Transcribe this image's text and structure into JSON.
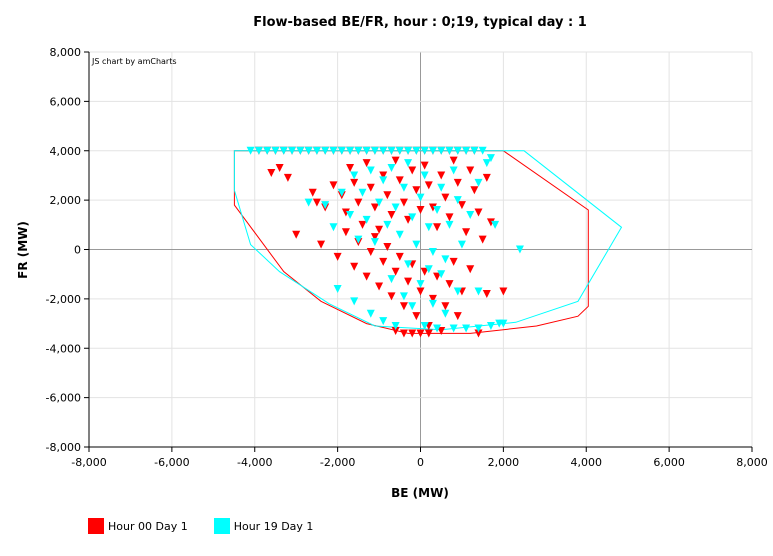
{
  "chart_data": {
    "type": "scatter",
    "title": "Flow-based BE/FR, hour : 0;19, typical day : 1",
    "xlabel": "BE (MW)",
    "ylabel": "FR (MW)",
    "credit": "JS chart by amCharts",
    "xlim": [
      -8000,
      8000
    ],
    "ylim": [
      -8000,
      8000
    ],
    "x_ticks": [
      "-8,000",
      "-6,000",
      "-4,000",
      "-2,000",
      "0",
      "2,000",
      "4,000",
      "6,000",
      "8,000"
    ],
    "y_ticks": [
      "8,000",
      "6,000",
      "4,000",
      "2,000",
      "0",
      "-2,000",
      "-4,000",
      "-6,000",
      "-8,000"
    ],
    "grid": true,
    "legend_position": "bottom-left",
    "series": [
      {
        "name": "Hour 00 Day 1",
        "color": "#ff0000",
        "domain_polygon": [
          [
            -4490,
            4000
          ],
          [
            2000,
            4000
          ],
          [
            4050,
            1600
          ],
          [
            4050,
            -2300
          ],
          [
            3800,
            -2700
          ],
          [
            2800,
            -3100
          ],
          [
            1200,
            -3400
          ],
          [
            -300,
            -3400
          ],
          [
            -1300,
            -3000
          ],
          [
            -2400,
            -2100
          ],
          [
            -3300,
            -900
          ],
          [
            -4490,
            1800
          ]
        ],
        "points": [
          [
            -3900,
            4000
          ],
          [
            -3700,
            4000
          ],
          [
            -3500,
            4000
          ],
          [
            -3300,
            4000
          ],
          [
            -3100,
            4000
          ],
          [
            -2900,
            4000
          ],
          [
            -2700,
            4000
          ],
          [
            -2500,
            4000
          ],
          [
            -2300,
            4000
          ],
          [
            -2100,
            4000
          ],
          [
            -1900,
            4000
          ],
          [
            -1700,
            4000
          ],
          [
            -1500,
            4000
          ],
          [
            -1300,
            4000
          ],
          [
            -1100,
            4000
          ],
          [
            -900,
            4000
          ],
          [
            -700,
            4000
          ],
          [
            -500,
            4000
          ],
          [
            -300,
            4000
          ],
          [
            -100,
            4000
          ],
          [
            100,
            4000
          ],
          [
            300,
            4000
          ],
          [
            500,
            4000
          ],
          [
            700,
            4000
          ],
          [
            900,
            4000
          ],
          [
            1100,
            4000
          ],
          [
            1300,
            4000
          ],
          [
            -3600,
            3100
          ],
          [
            -3400,
            3300
          ],
          [
            -3200,
            2900
          ],
          [
            -2600,
            2300
          ],
          [
            -2500,
            1900
          ],
          [
            -2300,
            1700
          ],
          [
            -2100,
            2600
          ],
          [
            -1900,
            2200
          ],
          [
            -1800,
            1500
          ],
          [
            -1700,
            3300
          ],
          [
            -1600,
            2700
          ],
          [
            -1500,
            1900
          ],
          [
            -1400,
            1000
          ],
          [
            -1300,
            3500
          ],
          [
            -1200,
            2500
          ],
          [
            -1100,
            1700
          ],
          [
            -1000,
            800
          ],
          [
            -900,
            3000
          ],
          [
            -800,
            2200
          ],
          [
            -700,
            1400
          ],
          [
            -600,
            3600
          ],
          [
            -500,
            2800
          ],
          [
            -400,
            1900
          ],
          [
            -300,
            1200
          ],
          [
            -200,
            3200
          ],
          [
            -100,
            2400
          ],
          [
            0,
            1600
          ],
          [
            100,
            3400
          ],
          [
            200,
            2600
          ],
          [
            300,
            1700
          ],
          [
            400,
            900
          ],
          [
            500,
            3000
          ],
          [
            600,
            2100
          ],
          [
            700,
            1300
          ],
          [
            800,
            3600
          ],
          [
            900,
            2700
          ],
          [
            1000,
            1800
          ],
          [
            1100,
            700
          ],
          [
            1200,
            3200
          ],
          [
            1300,
            2400
          ],
          [
            1400,
            1500
          ],
          [
            1500,
            400
          ],
          [
            1600,
            2900
          ],
          [
            1700,
            1100
          ],
          [
            2000,
            -1700
          ],
          [
            -3000,
            600
          ],
          [
            -2400,
            200
          ],
          [
            -2000,
            -300
          ],
          [
            -1800,
            700
          ],
          [
            -1600,
            -700
          ],
          [
            -1500,
            300
          ],
          [
            -1300,
            -1100
          ],
          [
            -1200,
            -100
          ],
          [
            -1100,
            500
          ],
          [
            -1000,
            -1500
          ],
          [
            -900,
            -500
          ],
          [
            -800,
            100
          ],
          [
            -700,
            -1900
          ],
          [
            -600,
            -900
          ],
          [
            -500,
            -300
          ],
          [
            -400,
            -2300
          ],
          [
            -300,
            -1300
          ],
          [
            -200,
            -600
          ],
          [
            -100,
            -2700
          ],
          [
            0,
            -1700
          ],
          [
            100,
            -900
          ],
          [
            200,
            -3100
          ],
          [
            300,
            -2000
          ],
          [
            400,
            -1100
          ],
          [
            500,
            -3300
          ],
          [
            600,
            -2300
          ],
          [
            700,
            -1400
          ],
          [
            800,
            -500
          ],
          [
            900,
            -2700
          ],
          [
            1000,
            -1700
          ],
          [
            1200,
            -800
          ],
          [
            1400,
            -3400
          ],
          [
            1600,
            -1800
          ],
          [
            -600,
            -3300
          ],
          [
            -400,
            -3400
          ],
          [
            -200,
            -3400
          ],
          [
            0,
            -3400
          ],
          [
            200,
            -3400
          ]
        ]
      },
      {
        "name": "Hour 19 Day 1",
        "color": "#00ffff",
        "domain_polygon": [
          [
            -4490,
            4000
          ],
          [
            2500,
            4000
          ],
          [
            4850,
            900
          ],
          [
            3800,
            -2100
          ],
          [
            2300,
            -2950
          ],
          [
            500,
            -3250
          ],
          [
            -1100,
            -3100
          ],
          [
            -2200,
            -2200
          ],
          [
            -3400,
            -900
          ],
          [
            -4100,
            200
          ],
          [
            -4490,
            2400
          ]
        ],
        "points": [
          [
            -4100,
            4000
          ],
          [
            -3900,
            4000
          ],
          [
            -3700,
            4000
          ],
          [
            -3500,
            4000
          ],
          [
            -3300,
            4000
          ],
          [
            -3100,
            4000
          ],
          [
            -2900,
            4000
          ],
          [
            -2700,
            4000
          ],
          [
            -2500,
            4000
          ],
          [
            -2300,
            4000
          ],
          [
            -2100,
            4000
          ],
          [
            -1900,
            4000
          ],
          [
            -1700,
            4000
          ],
          [
            -1500,
            4000
          ],
          [
            -1300,
            4000
          ],
          [
            -1100,
            4000
          ],
          [
            -900,
            4000
          ],
          [
            -700,
            4000
          ],
          [
            -500,
            4000
          ],
          [
            -300,
            4000
          ],
          [
            -100,
            4000
          ],
          [
            100,
            4000
          ],
          [
            300,
            4000
          ],
          [
            500,
            4000
          ],
          [
            700,
            4000
          ],
          [
            900,
            4000
          ],
          [
            1100,
            4000
          ],
          [
            1300,
            4000
          ],
          [
            1500,
            4000
          ],
          [
            1700,
            3700
          ],
          [
            -2700,
            1900
          ],
          [
            -2300,
            1800
          ],
          [
            -2100,
            900
          ],
          [
            -1900,
            2300
          ],
          [
            -1700,
            1400
          ],
          [
            -1600,
            3000
          ],
          [
            -1500,
            400
          ],
          [
            -1400,
            2300
          ],
          [
            -1300,
            1200
          ],
          [
            -1200,
            3200
          ],
          [
            -1100,
            300
          ],
          [
            -1000,
            1900
          ],
          [
            -900,
            2800
          ],
          [
            -800,
            1000
          ],
          [
            -700,
            3300
          ],
          [
            -600,
            1700
          ],
          [
            -500,
            600
          ],
          [
            -400,
            2500
          ],
          [
            -300,
            3500
          ],
          [
            -200,
            1300
          ],
          [
            -100,
            200
          ],
          [
            0,
            2100
          ],
          [
            100,
            3000
          ],
          [
            200,
            900
          ],
          [
            300,
            -100
          ],
          [
            400,
            1600
          ],
          [
            500,
            2500
          ],
          [
            600,
            -400
          ],
          [
            700,
            1000
          ],
          [
            800,
            3200
          ],
          [
            900,
            2000
          ],
          [
            1000,
            200
          ],
          [
            1200,
            1400
          ],
          [
            1400,
            2700
          ],
          [
            1600,
            3500
          ],
          [
            1800,
            1000
          ],
          [
            2400,
            0
          ],
          [
            -2000,
            -1600
          ],
          [
            -1600,
            -2100
          ],
          [
            -1200,
            -2600
          ],
          [
            -900,
            -2900
          ],
          [
            -700,
            -1200
          ],
          [
            -600,
            -3100
          ],
          [
            -400,
            -1900
          ],
          [
            -300,
            -600
          ],
          [
            -200,
            -2300
          ],
          [
            0,
            -1400
          ],
          [
            100,
            -3100
          ],
          [
            200,
            -800
          ],
          [
            300,
            -2200
          ],
          [
            400,
            -3200
          ],
          [
            500,
            -1000
          ],
          [
            600,
            -2600
          ],
          [
            800,
            -3200
          ],
          [
            900,
            -1700
          ],
          [
            1100,
            -3200
          ],
          [
            1400,
            -3200
          ],
          [
            1700,
            -3100
          ],
          [
            1900,
            -3000
          ],
          [
            1400,
            -1700
          ],
          [
            2000,
            -3000
          ]
        ]
      }
    ]
  }
}
